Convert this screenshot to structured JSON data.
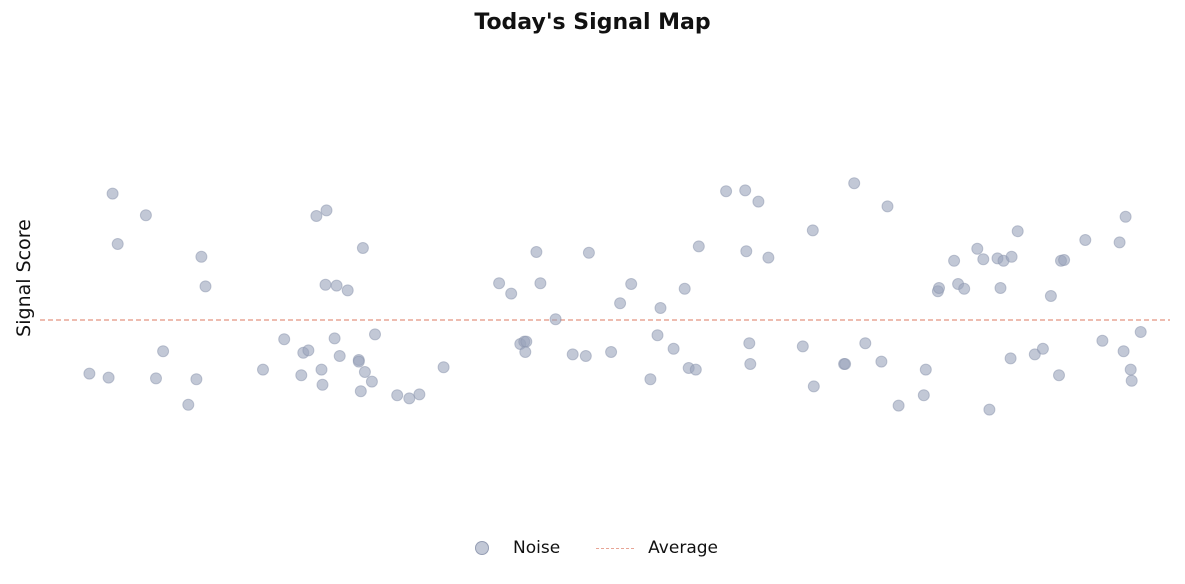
{
  "colors": {
    "points": "#9aa4bb",
    "average_line": "#e8a596",
    "background": "#ffffff"
  },
  "chart_data": {
    "type": "scatter",
    "title": "Today's Signal Map",
    "xlabel": "",
    "ylabel": "Signal Score",
    "xlim": [
      0,
      1120
    ],
    "ylim": [
      -2.5,
      3.5
    ],
    "grid": false,
    "legend_position": "bottom-center",
    "legend": [
      "Noise",
      "Average"
    ],
    "series": [
      {
        "name": "Noise",
        "points": [
          [
            49,
            -0.67
          ],
          [
            68,
            -0.72
          ],
          [
            72,
            1.58
          ],
          [
            77,
            0.95
          ],
          [
            105,
            1.31
          ],
          [
            115,
            -0.73
          ],
          [
            122,
            -0.39
          ],
          [
            147,
            -1.06
          ],
          [
            155,
            -0.74
          ],
          [
            160,
            0.79
          ],
          [
            164,
            0.42
          ],
          [
            221,
            -0.62
          ],
          [
            242,
            -0.24
          ],
          [
            259,
            -0.69
          ],
          [
            261,
            -0.41
          ],
          [
            266,
            -0.38
          ],
          [
            274,
            1.3
          ],
          [
            279,
            -0.62
          ],
          [
            280,
            -0.81
          ],
          [
            283,
            0.44
          ],
          [
            284,
            1.37
          ],
          [
            292,
            -0.23
          ],
          [
            294,
            0.43
          ],
          [
            297,
            -0.45
          ],
          [
            305,
            0.37
          ],
          [
            316,
            -0.5
          ],
          [
            316,
            -0.52
          ],
          [
            318,
            -0.89
          ],
          [
            320,
            0.9
          ],
          [
            322,
            -0.65
          ],
          [
            329,
            -0.77
          ],
          [
            332,
            -0.18
          ],
          [
            354,
            -0.94
          ],
          [
            366,
            -0.98
          ],
          [
            376,
            -0.93
          ],
          [
            400,
            -0.59
          ],
          [
            455,
            0.46
          ],
          [
            467,
            0.33
          ],
          [
            476,
            -0.3
          ],
          [
            480,
            -0.27
          ],
          [
            481,
            -0.4
          ],
          [
            482,
            -0.27
          ],
          [
            492,
            0.85
          ],
          [
            496,
            0.46
          ],
          [
            511,
            0.01
          ],
          [
            528,
            -0.43
          ],
          [
            541,
            -0.45
          ],
          [
            544,
            0.84
          ],
          [
            566,
            -0.4
          ],
          [
            575,
            0.21
          ],
          [
            586,
            0.45
          ],
          [
            605,
            -0.74
          ],
          [
            612,
            -0.19
          ],
          [
            615,
            0.15
          ],
          [
            628,
            -0.36
          ],
          [
            639,
            0.39
          ],
          [
            643,
            -0.6
          ],
          [
            650,
            -0.62
          ],
          [
            653,
            0.92
          ],
          [
            680,
            1.61
          ],
          [
            699,
            1.62
          ],
          [
            700,
            0.86
          ],
          [
            703,
            -0.29
          ],
          [
            704,
            -0.55
          ],
          [
            712,
            1.48
          ],
          [
            722,
            0.78
          ],
          [
            756,
            -0.33
          ],
          [
            766,
            1.12
          ],
          [
            767,
            -0.83
          ],
          [
            797,
            -0.55
          ],
          [
            798,
            -0.55
          ],
          [
            807,
            1.71
          ],
          [
            818,
            -0.29
          ],
          [
            834,
            -0.52
          ],
          [
            840,
            1.42
          ],
          [
            851,
            -1.07
          ],
          [
            876,
            -0.94
          ],
          [
            878,
            -0.62
          ],
          [
            890,
            0.36
          ],
          [
            891,
            0.4
          ],
          [
            906,
            0.74
          ],
          [
            910,
            0.45
          ],
          [
            916,
            0.39
          ],
          [
            929,
            0.89
          ],
          [
            935,
            0.76
          ],
          [
            941,
            -1.12
          ],
          [
            949,
            0.77
          ],
          [
            952,
            0.4
          ],
          [
            955,
            0.74
          ],
          [
            962,
            -0.48
          ],
          [
            963,
            0.79
          ],
          [
            969,
            1.11
          ],
          [
            986,
            -0.43
          ],
          [
            994,
            -0.36
          ],
          [
            1002,
            0.3
          ],
          [
            1010,
            -0.69
          ],
          [
            1012,
            0.74
          ],
          [
            1015,
            0.75
          ],
          [
            1036,
            1.0
          ],
          [
            1053,
            -0.26
          ],
          [
            1070,
            0.97
          ],
          [
            1074,
            -0.39
          ],
          [
            1076,
            1.29
          ],
          [
            1081,
            -0.62
          ],
          [
            1082,
            -0.76
          ],
          [
            1091,
            -0.15
          ]
        ]
      },
      {
        "name": "Average",
        "type": "hline",
        "y": 0.0
      }
    ]
  }
}
